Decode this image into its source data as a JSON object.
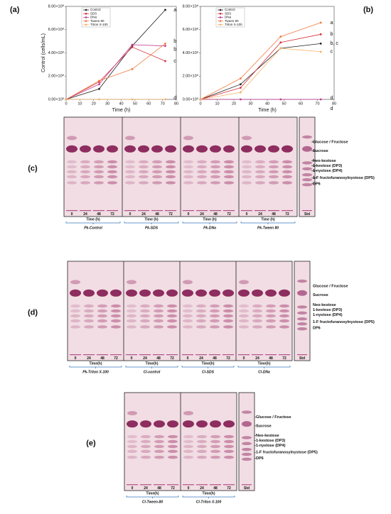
{
  "chart_data": [
    {
      "type": "line",
      "panel": "(a)",
      "xlabel": "Time (h)",
      "ylabel": "Control (cells/mL)",
      "xlim": [
        0,
        80
      ],
      "xticks": [
        0,
        10,
        20,
        30,
        40,
        50,
        60,
        70,
        80
      ],
      "ylim": [
        0,
        800000000
      ],
      "yticks": [
        {
          "value": 0,
          "label": "0.00×10⁰"
        },
        {
          "value": 200000000,
          "label": "2.00×10⁸"
        },
        {
          "value": 400000000,
          "label": "4.00×10⁸"
        },
        {
          "value": 600000000,
          "label": "6.00×10⁸"
        },
        {
          "value": 800000000,
          "label": "8.00×10⁸"
        }
      ],
      "x": [
        0,
        24,
        48,
        72
      ],
      "series": [
        {
          "name": "Control",
          "color": "#222222",
          "values": [
            0,
            90000000,
            460000000,
            770000000
          ]
        },
        {
          "name": "SDS",
          "color": "#d62f3a",
          "values": [
            0,
            150000000,
            450000000,
            330000000
          ]
        },
        {
          "name": "DNa",
          "color": "#c43a8f",
          "values": [
            0,
            130000000,
            470000000,
            460000000
          ]
        },
        {
          "name": "Tween 80",
          "color": "#f07b3f",
          "values": [
            0,
            160000000,
            260000000,
            480000000
          ]
        },
        {
          "name": "Triton X-100",
          "color": "#f4b266",
          "values": [
            0,
            0,
            0,
            0
          ]
        }
      ],
      "annotations": [
        {
          "text": "a",
          "x": 76,
          "y": 770000000
        },
        {
          "text": "b",
          "x": 76,
          "y": 500000000
        },
        {
          "text": "b",
          "x": 76,
          "y": 430000000
        },
        {
          "text": "c",
          "x": 76,
          "y": 330000000
        },
        {
          "text": "d",
          "x": 76,
          "y": 10000000
        }
      ]
    },
    {
      "type": "line",
      "panel": "(b)",
      "xlabel": "Time (h)",
      "ylabel": "",
      "xlim": [
        0,
        80
      ],
      "xticks": [
        0,
        10,
        20,
        30,
        40,
        50,
        60,
        70,
        80
      ],
      "ylim": [
        0,
        800000000
      ],
      "yticks": [
        {
          "value": 0,
          "label": "0.00×10⁰"
        },
        {
          "value": 200000000,
          "label": "2.00×10⁸"
        },
        {
          "value": 400000000,
          "label": "4.00×10⁸"
        },
        {
          "value": 600000000,
          "label": "6.00×10⁸"
        },
        {
          "value": 800000000,
          "label": "8.00×10⁸"
        }
      ],
      "x": [
        0,
        24,
        48,
        72
      ],
      "series": [
        {
          "name": "Control",
          "color": "#222222",
          "values": [
            0,
            130000000,
            440000000,
            480000000
          ]
        },
        {
          "name": "SDS",
          "color": "#d62f3a",
          "values": [
            0,
            100000000,
            490000000,
            560000000
          ]
        },
        {
          "name": "DNa",
          "color": "#c43a8f",
          "values": [
            0,
            0,
            0,
            0
          ]
        },
        {
          "name": "Tween 80",
          "color": "#f07b3f",
          "values": [
            0,
            180000000,
            540000000,
            660000000
          ]
        },
        {
          "name": "Triton X-100",
          "color": "#f4b266",
          "values": [
            0,
            60000000,
            440000000,
            410000000
          ]
        }
      ],
      "annotations": [
        {
          "text": "a",
          "x": 76,
          "y": 660000000
        },
        {
          "text": "b",
          "x": 76,
          "y": 560000000
        },
        {
          "text": "b, c",
          "x": 76,
          "y": 480000000
        },
        {
          "text": "c",
          "x": 76,
          "y": 410000000
        },
        {
          "text": "d",
          "x": 76,
          "y": 10000000
        },
        {
          "text": "d",
          "x": 76,
          "y": -80000000
        }
      ]
    }
  ],
  "plates": [
    {
      "panel": "(c)",
      "groups": [
        "Pk-Control",
        "Pk-SDS",
        "Pk-DNa",
        "Pk-Tween 80"
      ],
      "lanes": [
        "0",
        "24",
        "48",
        "72"
      ],
      "time_label": "Time (h)",
      "std_label": "Std",
      "bands": [
        "Glucose / Fructose",
        "Sucrose",
        "Neo-kestose",
        "1-kestose (DP3)",
        "1-nystose (DP4)",
        "1-F fructofuranosylnystose (DP5)",
        "DP6"
      ]
    },
    {
      "panel": "(d)",
      "groups": [
        "Pk-Triton X-100",
        "Cl-control",
        "Cl-SDS",
        "Cl-DNa"
      ],
      "lanes": [
        "0",
        "24",
        "48",
        "72"
      ],
      "time_label": "Time(h)",
      "std_label": "Std",
      "bands": [
        "Glucose / Fructose",
        "Sucrose",
        "Neo-kestose",
        "1-kestose (DP3)",
        "1-nystose (DP4)",
        "1-F fructofuranosylnystose (DP5)",
        "DP6"
      ]
    },
    {
      "panel": "(e)",
      "groups": [
        "Cl-Tween-80",
        "Cl-Triton X-100"
      ],
      "lanes": [
        "0",
        "24",
        "48",
        "72"
      ],
      "time_label": "Time(h)",
      "std_label": "Std",
      "bands": [
        "Glucose / Fructose",
        "Sucrose",
        "Neo-kestose",
        "1-kestose (DP3)",
        "1-nystose (DP4)",
        "1-F fructofuranosylnystose (DP5)",
        "DP6"
      ]
    }
  ]
}
